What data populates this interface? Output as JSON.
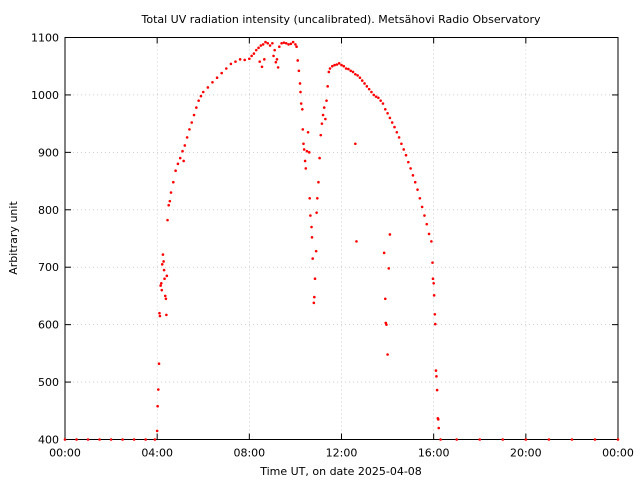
{
  "chart_data": {
    "type": "scatter",
    "title": "Total UV radiation intensity (uncalibrated). Metsähovi Radio Observatory",
    "xlabel": "Time UT, on date 2025-04-08",
    "ylabel": "Arbitrary unit",
    "xlim": [
      0,
      24
    ],
    "ylim": [
      400,
      1100
    ],
    "x_ticks": [
      0,
      4,
      8,
      12,
      16,
      20,
      24
    ],
    "x_tick_labels": [
      "00:00",
      "04:00",
      "08:00",
      "12:00",
      "16:00",
      "20:00",
      "00:00"
    ],
    "y_ticks": [
      400,
      500,
      600,
      700,
      800,
      900,
      1000,
      1100
    ],
    "y_tick_labels": [
      "400",
      "500",
      "600",
      "700",
      "800",
      "900",
      "1000",
      "1100"
    ],
    "grid": true,
    "marker_color": "#ff0000",
    "series": [
      {
        "name": "",
        "points": [
          [
            0.0,
            400
          ],
          [
            0.5,
            400
          ],
          [
            1.0,
            400
          ],
          [
            1.5,
            400
          ],
          [
            2.0,
            400
          ],
          [
            2.5,
            400
          ],
          [
            3.0,
            400
          ],
          [
            3.5,
            400
          ],
          [
            3.9,
            400
          ],
          [
            4.0,
            415
          ],
          [
            4.02,
            458
          ],
          [
            4.05,
            487
          ],
          [
            4.08,
            532
          ],
          [
            4.1,
            620
          ],
          [
            4.12,
            615
          ],
          [
            4.15,
            668
          ],
          [
            4.18,
            672
          ],
          [
            4.2,
            660
          ],
          [
            4.22,
            705
          ],
          [
            4.25,
            722
          ],
          [
            4.28,
            710
          ],
          [
            4.3,
            695
          ],
          [
            4.32,
            680
          ],
          [
            4.35,
            650
          ],
          [
            4.38,
            645
          ],
          [
            4.4,
            617
          ],
          [
            4.42,
            685
          ],
          [
            4.45,
            782
          ],
          [
            4.5,
            808
          ],
          [
            4.55,
            815
          ],
          [
            4.6,
            830
          ],
          [
            4.7,
            848
          ],
          [
            4.8,
            868
          ],
          [
            4.9,
            880
          ],
          [
            5.0,
            890
          ],
          [
            5.1,
            902
          ],
          [
            5.15,
            885
          ],
          [
            5.2,
            912
          ],
          [
            5.3,
            926
          ],
          [
            5.4,
            940
          ],
          [
            5.5,
            952
          ],
          [
            5.6,
            965
          ],
          [
            5.7,
            978
          ],
          [
            5.8,
            990
          ],
          [
            5.9,
            998
          ],
          [
            6.0,
            1005
          ],
          [
            6.2,
            1013
          ],
          [
            6.4,
            1022
          ],
          [
            6.6,
            1030
          ],
          [
            6.8,
            1038
          ],
          [
            7.0,
            1046
          ],
          [
            7.2,
            1054
          ],
          [
            7.4,
            1058
          ],
          [
            7.6,
            1062
          ],
          [
            7.8,
            1061
          ],
          [
            8.0,
            1063
          ],
          [
            8.1,
            1068
          ],
          [
            8.2,
            1072
          ],
          [
            8.3,
            1078
          ],
          [
            8.4,
            1082
          ],
          [
            8.45,
            1058
          ],
          [
            8.5,
            1086
          ],
          [
            8.55,
            1049
          ],
          [
            8.6,
            1088
          ],
          [
            8.65,
            1062
          ],
          [
            8.7,
            1092
          ],
          [
            8.8,
            1090
          ],
          [
            8.9,
            1086
          ],
          [
            9.0,
            1090
          ],
          [
            9.05,
            1068
          ],
          [
            9.1,
            1078
          ],
          [
            9.15,
            1057
          ],
          [
            9.2,
            1062
          ],
          [
            9.25,
            1048
          ],
          [
            9.3,
            1084
          ],
          [
            9.4,
            1090
          ],
          [
            9.5,
            1091
          ],
          [
            9.6,
            1090
          ],
          [
            9.7,
            1088
          ],
          [
            9.8,
            1089
          ],
          [
            9.9,
            1092
          ],
          [
            10.0,
            1088
          ],
          [
            10.05,
            1084
          ],
          [
            10.1,
            1060
          ],
          [
            10.15,
            1042
          ],
          [
            10.2,
            1020
          ],
          [
            10.22,
            1005
          ],
          [
            10.25,
            985
          ],
          [
            10.3,
            975
          ],
          [
            10.32,
            940
          ],
          [
            10.35,
            915
          ],
          [
            10.38,
            905
          ],
          [
            10.42,
            885
          ],
          [
            10.45,
            872
          ],
          [
            10.5,
            902
          ],
          [
            10.55,
            935
          ],
          [
            10.6,
            900
          ],
          [
            10.62,
            820
          ],
          [
            10.65,
            790
          ],
          [
            10.7,
            770
          ],
          [
            10.72,
            752
          ],
          [
            10.75,
            715
          ],
          [
            10.8,
            638
          ],
          [
            10.82,
            648
          ],
          [
            10.85,
            680
          ],
          [
            10.9,
            728
          ],
          [
            10.92,
            795
          ],
          [
            10.95,
            820
          ],
          [
            11.0,
            848
          ],
          [
            11.05,
            890
          ],
          [
            11.1,
            930
          ],
          [
            11.15,
            950
          ],
          [
            11.2,
            965
          ],
          [
            11.25,
            978
          ],
          [
            11.3,
            958
          ],
          [
            11.35,
            990
          ],
          [
            11.4,
            1015
          ],
          [
            11.45,
            1040
          ],
          [
            11.5,
            1046
          ],
          [
            11.6,
            1050
          ],
          [
            11.7,
            1052
          ],
          [
            11.8,
            1053
          ],
          [
            11.9,
            1055
          ],
          [
            12.0,
            1052
          ],
          [
            12.1,
            1050
          ],
          [
            12.2,
            1046
          ],
          [
            12.3,
            1045
          ],
          [
            12.4,
            1042
          ],
          [
            12.5,
            1040
          ],
          [
            12.6,
            1036
          ],
          [
            12.7,
            1034
          ],
          [
            12.8,
            1030
          ],
          [
            12.9,
            1025
          ],
          [
            13.0,
            1020
          ],
          [
            13.1,
            1015
          ],
          [
            13.2,
            1010
          ],
          [
            13.3,
            1005
          ],
          [
            13.4,
            1000
          ],
          [
            13.5,
            997
          ],
          [
            13.6,
            995
          ],
          [
            13.7,
            990
          ],
          [
            13.8,
            985
          ],
          [
            13.9,
            975
          ],
          [
            14.0,
            968
          ],
          [
            14.1,
            960
          ],
          [
            14.2,
            952
          ],
          [
            14.3,
            944
          ],
          [
            14.4,
            935
          ],
          [
            14.5,
            926
          ],
          [
            14.6,
            915
          ],
          [
            14.7,
            905
          ],
          [
            14.8,
            895
          ],
          [
            14.9,
            883
          ],
          [
            15.0,
            872
          ],
          [
            15.1,
            860
          ],
          [
            15.2,
            848
          ],
          [
            15.3,
            835
          ],
          [
            15.4,
            820
          ],
          [
            15.5,
            805
          ],
          [
            15.6,
            790
          ],
          [
            15.7,
            775
          ],
          [
            15.8,
            758
          ],
          [
            15.9,
            745
          ],
          [
            12.6,
            915
          ],
          [
            12.65,
            745
          ],
          [
            13.85,
            725
          ],
          [
            13.9,
            645
          ],
          [
            13.92,
            603
          ],
          [
            13.95,
            600
          ],
          [
            14.0,
            548
          ],
          [
            14.05,
            698
          ],
          [
            14.1,
            757
          ],
          [
            15.95,
            708
          ],
          [
            15.97,
            680
          ],
          [
            16.0,
            672
          ],
          [
            16.02,
            651
          ],
          [
            16.05,
            618
          ],
          [
            16.07,
            601
          ],
          [
            16.1,
            520
          ],
          [
            16.12,
            510
          ],
          [
            16.15,
            486
          ],
          [
            16.18,
            437
          ],
          [
            16.2,
            435
          ],
          [
            16.22,
            420
          ],
          [
            16.3,
            400
          ],
          [
            17.0,
            400
          ],
          [
            18.0,
            400
          ],
          [
            19.0,
            400
          ],
          [
            20.0,
            400
          ],
          [
            21.0,
            400
          ],
          [
            22.0,
            400
          ],
          [
            23.0,
            400
          ],
          [
            24.0,
            400
          ]
        ]
      }
    ]
  }
}
